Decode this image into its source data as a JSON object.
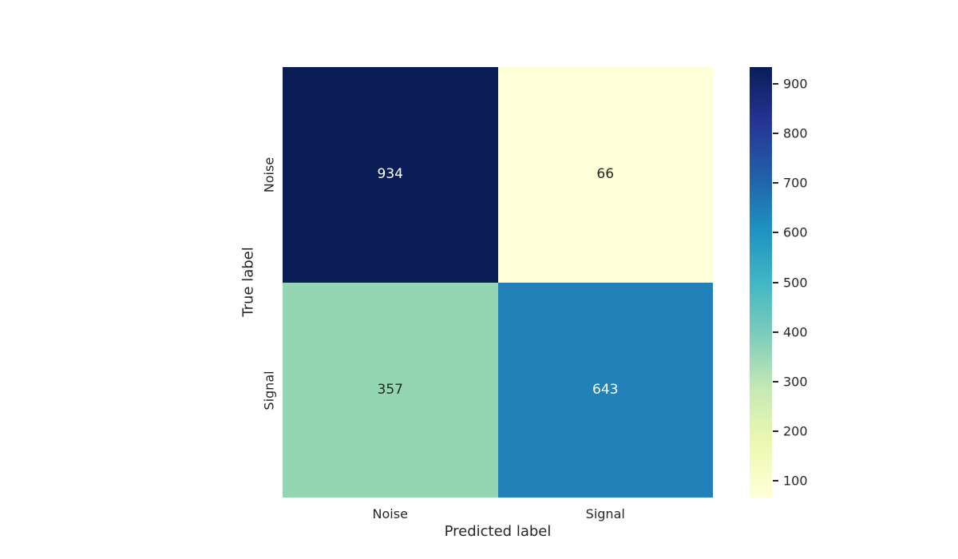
{
  "chart_data": {
    "type": "heatmap",
    "title": "",
    "xlabel": "Predicted label",
    "ylabel": "True label",
    "x_categories": [
      "Noise",
      "Signal"
    ],
    "y_categories": [
      "Noise",
      "Signal"
    ],
    "values": [
      [
        934,
        66
      ],
      [
        357,
        643
      ]
    ],
    "annot_labels": [
      [
        "934",
        "66"
      ],
      [
        "357",
        "643"
      ]
    ],
    "cell_colors": [
      [
        "#0b1d56",
        "#feffd9"
      ],
      [
        "#94d6b2",
        "#2181b8"
      ]
    ],
    "annot_text_colors": [
      [
        "#ffffff",
        "#262626"
      ],
      [
        "#262626",
        "#ffffff"
      ]
    ],
    "colormap": "YlGnBu",
    "vmin": 66,
    "vmax": 934,
    "grid": false,
    "tick_color": "#262626",
    "colorbar": {
      "position": "right",
      "ticks": [
        100,
        200,
        300,
        400,
        500,
        600,
        700,
        800,
        900
      ],
      "gradient_stops": [
        {
          "pos": 0.0,
          "color": "#ffffd9"
        },
        {
          "pos": 0.125,
          "color": "#edf8b1"
        },
        {
          "pos": 0.25,
          "color": "#c7e9b4"
        },
        {
          "pos": 0.375,
          "color": "#7fcdbb"
        },
        {
          "pos": 0.5,
          "color": "#41b6c4"
        },
        {
          "pos": 0.625,
          "color": "#1d91c0"
        },
        {
          "pos": 0.75,
          "color": "#225ea8"
        },
        {
          "pos": 0.875,
          "color": "#253494"
        },
        {
          "pos": 1.0,
          "color": "#081d58"
        }
      ]
    }
  }
}
